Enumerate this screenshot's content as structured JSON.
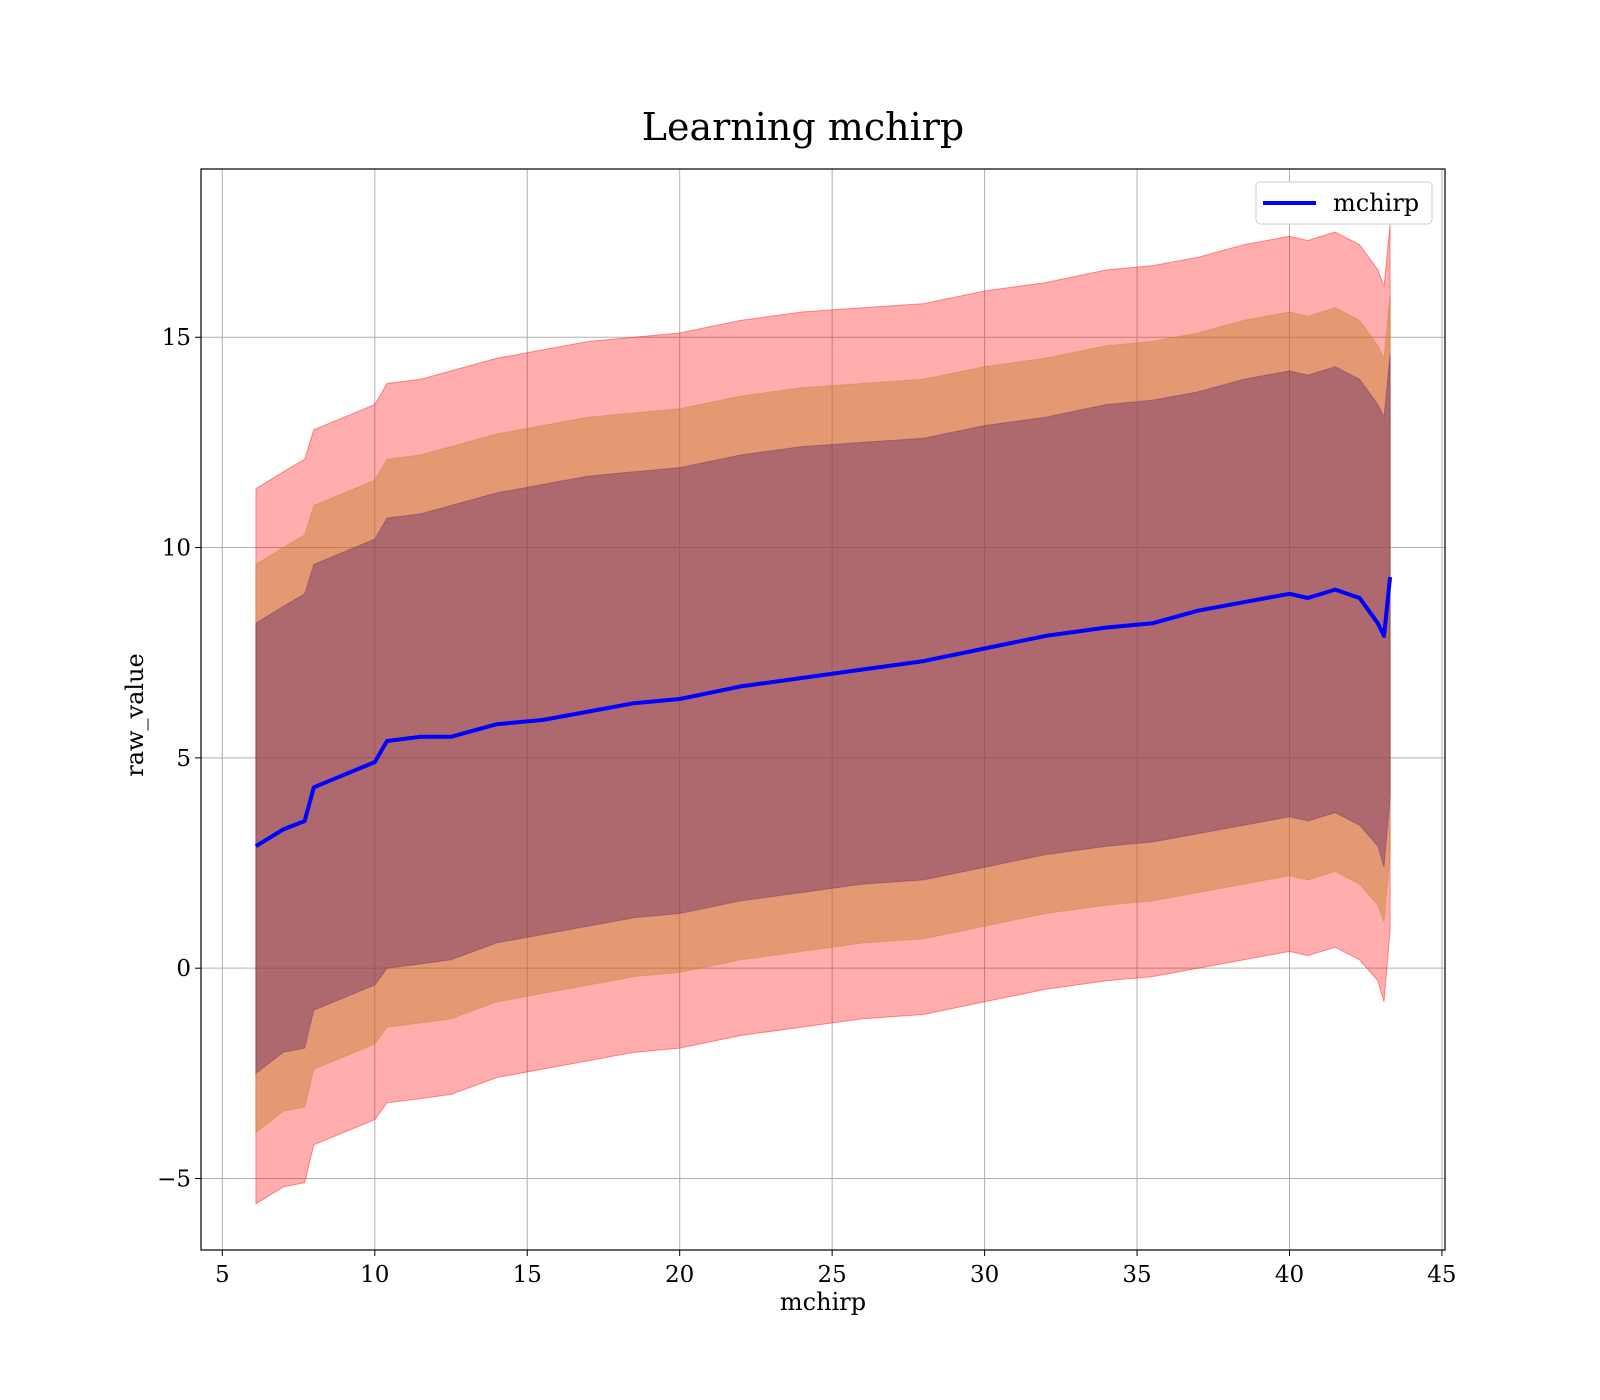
{
  "chart_data": {
    "type": "line",
    "title": "Learning mchirp",
    "xlabel": "mchirp",
    "ylabel": "raw_value",
    "xlim": [
      4.3,
      45.1
    ],
    "ylim": [
      -6.7,
      19.0
    ],
    "x_ticks": [
      5,
      10,
      15,
      20,
      25,
      30,
      35,
      40,
      45
    ],
    "y_ticks": [
      -5,
      0,
      5,
      10,
      15
    ],
    "x_tick_labels": [
      "5",
      "10",
      "15",
      "20",
      "25",
      "30",
      "35",
      "40",
      "45"
    ],
    "y_tick_labels": [
      "−5",
      "0",
      "5",
      "10",
      "15"
    ],
    "grid": true,
    "legend": {
      "position": "top-right",
      "entries": [
        "mchirp"
      ]
    },
    "x_range": [
      6.1,
      43.3
    ],
    "line_color": "#0000ff",
    "band_colors": {
      "outer": "#ff6666",
      "middle": "#a87a4a",
      "inner": "#7a3d6a"
    },
    "series": [
      {
        "name": "mchirp",
        "x": [
          6.1,
          7.0,
          7.7,
          8.0,
          9.0,
          10.0,
          10.4,
          11.5,
          12.5,
          14.0,
          15.5,
          17.0,
          18.5,
          20.0,
          22.0,
          24.0,
          26.0,
          28.0,
          30.0,
          32.0,
          34.0,
          35.5,
          37.0,
          38.5,
          40.0,
          40.6,
          41.5,
          42.3,
          42.9,
          43.1,
          43.3
        ],
        "values": [
          2.9,
          3.3,
          3.5,
          4.3,
          4.6,
          4.9,
          5.4,
          5.5,
          5.5,
          5.8,
          5.9,
          6.1,
          6.3,
          6.4,
          6.7,
          6.9,
          7.1,
          7.3,
          7.6,
          7.9,
          8.1,
          8.2,
          8.5,
          8.7,
          8.9,
          8.8,
          9.0,
          8.8,
          8.2,
          7.9,
          9.3
        ]
      }
    ],
    "bands": [
      {
        "level": "outer",
        "lower": [
          -5.6,
          -5.2,
          -5.1,
          -4.2,
          -3.9,
          -3.6,
          -3.2,
          -3.1,
          -3.0,
          -2.6,
          -2.4,
          -2.2,
          -2.0,
          -1.9,
          -1.6,
          -1.4,
          -1.2,
          -1.1,
          -0.8,
          -0.5,
          -0.3,
          -0.2,
          0.0,
          0.2,
          0.4,
          0.3,
          0.5,
          0.2,
          -0.3,
          -0.8,
          0.9
        ],
        "upper": [
          11.4,
          11.8,
          12.1,
          12.8,
          13.1,
          13.4,
          13.9,
          14.0,
          14.2,
          14.5,
          14.7,
          14.9,
          15.0,
          15.1,
          15.4,
          15.6,
          15.7,
          15.8,
          16.1,
          16.3,
          16.6,
          16.7,
          16.9,
          17.2,
          17.4,
          17.3,
          17.5,
          17.2,
          16.6,
          16.2,
          17.7
        ]
      },
      {
        "level": "middle",
        "lower": [
          -3.9,
          -3.4,
          -3.3,
          -2.4,
          -2.1,
          -1.8,
          -1.4,
          -1.3,
          -1.2,
          -0.8,
          -0.6,
          -0.4,
          -0.2,
          -0.1,
          0.2,
          0.4,
          0.6,
          0.7,
          1.0,
          1.3,
          1.5,
          1.6,
          1.8,
          2.0,
          2.2,
          2.1,
          2.3,
          2.0,
          1.5,
          1.1,
          2.7
        ],
        "upper": [
          9.6,
          10.0,
          10.3,
          11.0,
          11.3,
          11.6,
          12.1,
          12.2,
          12.4,
          12.7,
          12.9,
          13.1,
          13.2,
          13.3,
          13.6,
          13.8,
          13.9,
          14.0,
          14.3,
          14.5,
          14.8,
          14.9,
          15.1,
          15.4,
          15.6,
          15.5,
          15.7,
          15.4,
          14.8,
          14.5,
          16.0
        ]
      },
      {
        "level": "inner",
        "lower": [
          -2.5,
          -2.0,
          -1.9,
          -1.0,
          -0.7,
          -0.4,
          0.0,
          0.1,
          0.2,
          0.6,
          0.8,
          1.0,
          1.2,
          1.3,
          1.6,
          1.8,
          2.0,
          2.1,
          2.4,
          2.7,
          2.9,
          3.0,
          3.2,
          3.4,
          3.6,
          3.5,
          3.7,
          3.4,
          2.9,
          2.4,
          4.1
        ],
        "upper": [
          8.2,
          8.6,
          8.9,
          9.6,
          9.9,
          10.2,
          10.7,
          10.8,
          11.0,
          11.3,
          11.5,
          11.7,
          11.8,
          11.9,
          12.2,
          12.4,
          12.5,
          12.6,
          12.9,
          13.1,
          13.4,
          13.5,
          13.7,
          14.0,
          14.2,
          14.1,
          14.3,
          14.0,
          13.4,
          13.1,
          14.6
        ]
      }
    ]
  }
}
